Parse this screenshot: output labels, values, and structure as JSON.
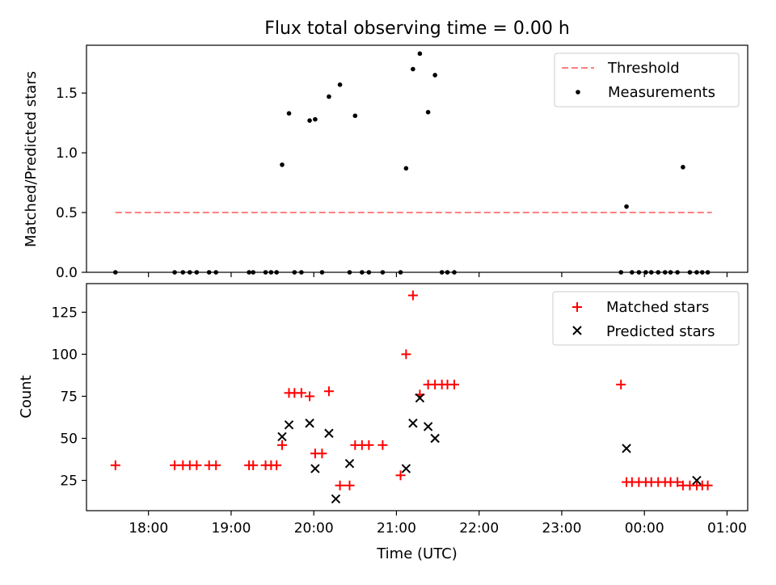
{
  "chart_data": [
    {
      "type": "scatter",
      "title": "Flux total observing time = 0.00 h",
      "xlabel": "",
      "ylabel": "Matched/Predicted stars",
      "xlim": [
        "17:15",
        "01:15"
      ],
      "ylim": [
        0,
        1.9
      ],
      "xticks": [
        "18:00",
        "19:00",
        "20:00",
        "21:00",
        "22:00",
        "23:00",
        "00:00",
        "01:00"
      ],
      "xtick_labels_visible": false,
      "yticks": [
        0.0,
        0.5,
        1.0,
        1.5
      ],
      "ytick_labels": [
        "0.0",
        "0.5",
        "1.0",
        "1.5"
      ],
      "grid": false,
      "legend_position": "top-right",
      "legend": [
        "Threshold",
        "Measurements"
      ],
      "threshold": {
        "name": "Threshold",
        "value": 0.5,
        "x_range": [
          "17:36",
          "00:49"
        ],
        "color": "#ff8080",
        "style": "dashed"
      },
      "series": [
        {
          "name": "Measurements",
          "marker": "dot",
          "color": "#000000",
          "x": [
            "17:36",
            "18:19",
            "18:25",
            "18:30",
            "18:35",
            "18:44",
            "18:49",
            "19:13",
            "19:16",
            "19:25",
            "19:29",
            "19:33",
            "19:37",
            "19:42",
            "19:46",
            "19:51",
            "19:57",
            "20:01",
            "20:06",
            "20:11",
            "20:19",
            "20:26",
            "20:30",
            "20:35",
            "20:40",
            "20:50",
            "21:03",
            "21:07",
            "21:12",
            "21:17",
            "21:23",
            "21:28",
            "21:33",
            "21:37",
            "21:42",
            "23:43",
            "23:47",
            "23:51",
            "23:56",
            "00:01",
            "00:05",
            "00:10",
            "00:15",
            "00:19",
            "00:24",
            "00:28",
            "00:33",
            "00:38",
            "00:42",
            "00:46"
          ],
          "y": [
            0,
            0,
            0,
            0,
            0,
            0,
            0,
            0,
            0,
            0,
            0,
            0,
            0.9,
            1.33,
            0,
            0,
            1.27,
            1.28,
            0,
            1.47,
            1.57,
            0,
            1.31,
            0,
            0,
            0,
            0,
            0.87,
            1.7,
            1.83,
            1.34,
            1.65,
            0,
            0,
            0,
            0,
            0.55,
            0,
            0,
            0,
            0,
            0,
            0,
            0,
            0,
            0.88,
            0,
            0,
            0,
            0
          ]
        }
      ]
    },
    {
      "type": "scatter",
      "title": "",
      "xlabel": "Time (UTC)",
      "ylabel": "Count",
      "xlim": [
        "17:15",
        "01:15"
      ],
      "ylim": [
        7,
        142
      ],
      "xticks": [
        "18:00",
        "19:00",
        "20:00",
        "21:00",
        "22:00",
        "23:00",
        "00:00",
        "01:00"
      ],
      "yticks": [
        25,
        50,
        75,
        100,
        125
      ],
      "grid": false,
      "legend_position": "top-right",
      "legend": [
        "Matched stars",
        "Predicted stars"
      ],
      "series": [
        {
          "name": "Matched stars",
          "marker": "plus",
          "color": "#ff0000",
          "x": [
            "17:36",
            "18:19",
            "18:25",
            "18:30",
            "18:35",
            "18:44",
            "18:49",
            "19:13",
            "19:16",
            "19:25",
            "19:29",
            "19:33",
            "19:37",
            "19:42",
            "19:46",
            "19:51",
            "19:57",
            "20:01",
            "20:06",
            "20:11",
            "20:19",
            "20:26",
            "20:30",
            "20:35",
            "20:40",
            "20:50",
            "21:03",
            "21:07",
            "21:12",
            "21:17",
            "21:23",
            "21:28",
            "21:33",
            "21:37",
            "21:42",
            "23:43",
            "23:47",
            "23:51",
            "23:56",
            "00:01",
            "00:05",
            "00:10",
            "00:15",
            "00:19",
            "00:24",
            "00:28",
            "00:33",
            "00:38",
            "00:42",
            "00:46"
          ],
          "y": [
            34,
            34,
            34,
            34,
            34,
            34,
            34,
            34,
            34,
            34,
            34,
            34,
            46,
            77,
            77,
            77,
            75,
            41,
            41,
            78,
            22,
            22,
            46,
            46,
            46,
            46,
            28,
            100,
            135,
            76,
            82,
            82,
            82,
            82,
            82,
            82,
            24,
            24,
            24,
            24,
            24,
            24,
            24,
            24,
            24,
            22,
            22,
            22,
            22,
            22
          ]
        },
        {
          "name": "Predicted stars",
          "marker": "x",
          "color": "#000000",
          "x": [
            "19:37",
            "19:42",
            "19:57",
            "20:01",
            "20:11",
            "20:16",
            "20:26",
            "21:07",
            "21:12",
            "21:17",
            "21:23",
            "21:28",
            "23:47",
            "00:38"
          ],
          "y": [
            51,
            58,
            59,
            32,
            53,
            14,
            35,
            32,
            59,
            74,
            57,
            50,
            44,
            25
          ]
        }
      ]
    }
  ]
}
